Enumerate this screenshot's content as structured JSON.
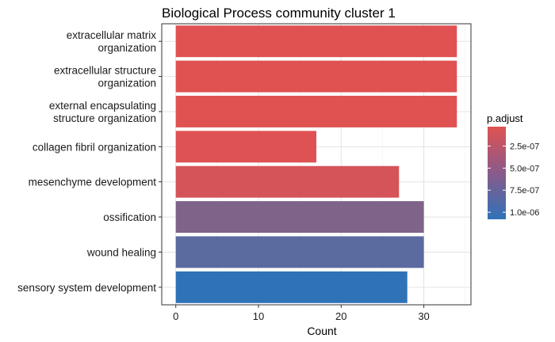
{
  "chart_data": {
    "type": "bar",
    "orientation": "horizontal",
    "title": "Biological Process community cluster 1",
    "xlabel": "Count",
    "ylabel": "",
    "xlim": [
      -1.7,
      35.7
    ],
    "x_ticks": [
      0,
      10,
      20,
      30
    ],
    "grid": true,
    "categories": [
      [
        "extracellular matrix",
        "organization"
      ],
      [
        "extracellular structure",
        "organization"
      ],
      [
        "external encapsulating",
        "structure organization"
      ],
      [
        "collagen fibril organization"
      ],
      [
        "mesenchyme development"
      ],
      [
        "ossification"
      ],
      [
        "wound healing"
      ],
      [
        "sensory system development"
      ]
    ],
    "values": [
      34,
      34,
      34,
      17,
      27,
      30,
      30,
      28
    ],
    "p_adjust": [
      3e-08,
      3e-08,
      3e-08,
      4e-08,
      1e-07,
      6e-07,
      8.2e-07,
      1.08e-06
    ],
    "legend": {
      "title": "p.adjust",
      "placement": "right",
      "ticks": [
        {
          "value": 2.5e-07,
          "label": "2.5e-07"
        },
        {
          "value": 5e-07,
          "label": "5.0e-07"
        },
        {
          "value": 7.5e-07,
          "label": "7.5e-07"
        },
        {
          "value": 1e-06,
          "label": "1.0e-06"
        }
      ],
      "range": [
        3e-08,
        1.08e-06
      ],
      "color_low": "#e05252",
      "color_high": "#2f72b8"
    }
  }
}
